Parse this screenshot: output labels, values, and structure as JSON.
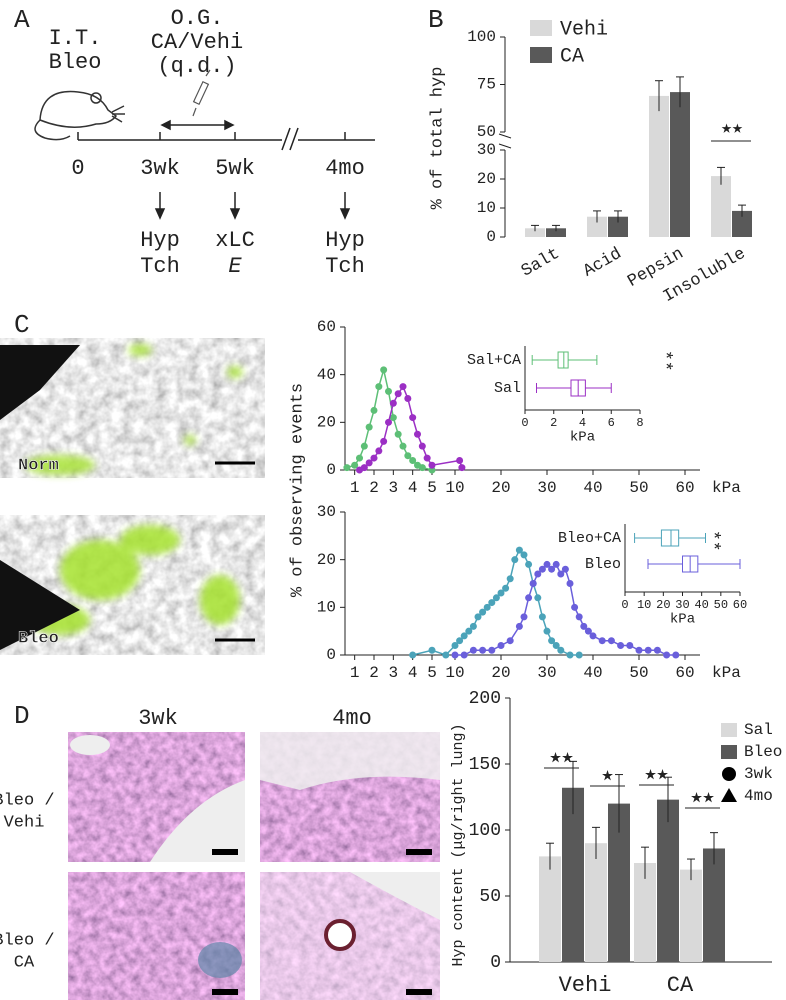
{
  "panel_labels": [
    "A",
    "B",
    "C",
    "D"
  ],
  "schematic": {
    "injection": [
      "I.T.",
      "Bleo"
    ],
    "treatment": [
      "O.G.",
      "CA/Vehi",
      "(q.d.)"
    ],
    "timepoints": [
      "0",
      "3wk",
      "5wk",
      "4mo"
    ],
    "readouts": [
      [
        "Hyp",
        "Tch"
      ],
      [
        "xLC",
        "E"
      ],
      [
        "Hyp",
        "Tch"
      ]
    ]
  },
  "images": {
    "c_labels": [
      "Norm",
      "Bleo"
    ],
    "d_columns": [
      "3wk",
      "4mo"
    ],
    "d_rows": [
      [
        "Bleo /",
        "Vehi"
      ],
      [
        "Bleo /",
        "CA"
      ]
    ]
  },
  "chart_data": [
    {
      "type": "bar",
      "ylabel": "% of total hyp",
      "categories": [
        "Salt",
        "Acid",
        "Pepsin",
        "Insoluble"
      ],
      "series": [
        {
          "name": "Vehi",
          "color": "#d9d9d9",
          "values": [
            3,
            7,
            69,
            21
          ],
          "errors": [
            1,
            2,
            8,
            3
          ]
        },
        {
          "name": "CA",
          "color": "#595959",
          "values": [
            3,
            7,
            71,
            9
          ],
          "errors": [
            1,
            2,
            8,
            2
          ]
        }
      ],
      "ylim": [
        0,
        100
      ],
      "ybreak": [
        30,
        50
      ],
      "yticks": [
        0,
        10,
        20,
        30,
        50,
        75,
        100
      ],
      "annotations": [
        "★★"
      ]
    },
    {
      "type": "line",
      "ylabel": "% of observing events",
      "xlabel": "kPa",
      "xlim": [
        0.5,
        60
      ],
      "xsplit": 5,
      "xticks": [
        1,
        2,
        3,
        4,
        5,
        10,
        20,
        30,
        40,
        50,
        60
      ],
      "ylim": [
        0,
        60
      ],
      "yticks": [
        0,
        20,
        40,
        60
      ],
      "series": [
        {
          "name": "Sal+CA",
          "color": "#5dbf76",
          "x": [
            0.6,
            1,
            1.25,
            1.5,
            1.75,
            2,
            2.25,
            2.5,
            2.75,
            3,
            3.25,
            3.5,
            3.75,
            4,
            4.25,
            4.5,
            5
          ],
          "values": [
            1,
            2,
            5,
            10,
            18,
            25,
            35,
            42,
            33,
            22,
            15,
            10,
            6,
            4,
            2,
            1,
            0
          ]
        },
        {
          "name": "Sal",
          "color": "#9b2fc4",
          "x": [
            1.25,
            1.5,
            1.75,
            2,
            2.25,
            2.5,
            2.75,
            3,
            3.25,
            3.5,
            3.75,
            4,
            4.25,
            4.5,
            4.75,
            5,
            11,
            11.5
          ],
          "values": [
            0,
            1,
            3,
            5,
            8,
            12,
            20,
            28,
            32,
            35,
            30,
            22,
            15,
            10,
            5,
            2,
            4,
            1
          ]
        }
      ],
      "inset": {
        "type": "box",
        "xlabel": "kPa",
        "xlim": [
          0,
          8
        ],
        "xticks": [
          0,
          2,
          4,
          6,
          8
        ],
        "annotation": "**",
        "boxes": [
          {
            "name": "Sal+CA",
            "color": "#5dbf76",
            "whislo": 0.5,
            "q1": 2.3,
            "med": 2.7,
            "q3": 3,
            "whishi": 5
          },
          {
            "name": "Sal",
            "color": "#9b2fc4",
            "whislo": 0.8,
            "q1": 3.2,
            "med": 3.7,
            "q3": 4.2,
            "whishi": 6
          }
        ]
      }
    },
    {
      "type": "line",
      "xlabel": "kPa",
      "xlim": [
        0.5,
        60
      ],
      "xsplit": 5,
      "xticks": [
        1,
        2,
        3,
        4,
        5,
        10,
        20,
        30,
        40,
        50,
        60
      ],
      "ylim": [
        0,
        30
      ],
      "yticks": [
        0,
        10,
        20,
        30
      ],
      "series": [
        {
          "name": "Bleo+CA",
          "color": "#4ba3b9",
          "x": [
            4,
            5,
            8,
            10,
            11,
            12,
            13,
            14,
            15,
            16,
            17,
            18,
            19,
            20,
            21,
            22,
            23,
            24,
            25,
            26,
            27,
            28,
            29,
            30,
            31,
            32,
            33,
            35,
            37
          ],
          "values": [
            0,
            1,
            0,
            2,
            3,
            4,
            5,
            6,
            8,
            9,
            10,
            11,
            12,
            13,
            14,
            16,
            20,
            22,
            21,
            19,
            15,
            12,
            8,
            5,
            3,
            2,
            1,
            0,
            0
          ]
        },
        {
          "name": "Bleo",
          "color": "#6a5fdb",
          "x": [
            10,
            12,
            14,
            16,
            18,
            20,
            22,
            24,
            25,
            26,
            27,
            28,
            29,
            30,
            31,
            32,
            33,
            34,
            35,
            36,
            37,
            38,
            39,
            40,
            42,
            44,
            46,
            48,
            50,
            52,
            54,
            56,
            58
          ],
          "values": [
            0,
            0,
            1,
            1,
            1,
            2,
            3,
            6,
            8,
            12,
            15,
            17,
            18,
            19,
            18,
            19,
            17,
            18,
            15,
            10,
            8,
            6,
            5,
            4,
            3,
            3,
            2,
            2,
            1,
            1,
            1,
            0,
            0
          ]
        }
      ],
      "inset": {
        "type": "box",
        "xlabel": "kPa",
        "xlim": [
          0,
          60
        ],
        "xticks": [
          0,
          10,
          20,
          30,
          40,
          50,
          60
        ],
        "annotation": "**",
        "boxes": [
          {
            "name": "Bleo+CA",
            "color": "#4ba3b9",
            "whislo": 5,
            "q1": 19,
            "med": 24,
            "q3": 28,
            "whishi": 42
          },
          {
            "name": "Bleo",
            "color": "#6a5fdb",
            "whislo": 12,
            "q1": 30,
            "med": 34,
            "q3": 38,
            "whishi": 60
          }
        ]
      }
    },
    {
      "type": "bar",
      "ylabel": "Hyp content (μg/right lung)",
      "categories": [
        "Vehi",
        "CA"
      ],
      "ylim": [
        0,
        200
      ],
      "yticks": [
        0,
        50,
        100,
        150,
        200
      ],
      "series": [
        {
          "color": "#d9d9d9",
          "values": [
            80,
            75
          ],
          "errors": [
            10,
            12
          ]
        },
        {
          "color": "#595959",
          "values": [
            132,
            123
          ],
          "errors": [
            20,
            17
          ]
        },
        {
          "color": "#d9d9d9",
          "values": [
            90,
            70
          ],
          "errors": [
            12,
            8
          ]
        },
        {
          "color": "#595959",
          "values": [
            120,
            86
          ],
          "errors": [
            22,
            12
          ]
        }
      ],
      "legend": [
        {
          "label": "Sal",
          "color": "#d9d9d9"
        },
        {
          "label": "Bleo",
          "color": "#595959"
        },
        {
          "label": "3wk",
          "marker": "circle"
        },
        {
          "label": "4mo",
          "marker": "triangle"
        }
      ],
      "annotations": [
        "★★",
        "★",
        "★★",
        "★★"
      ]
    }
  ]
}
